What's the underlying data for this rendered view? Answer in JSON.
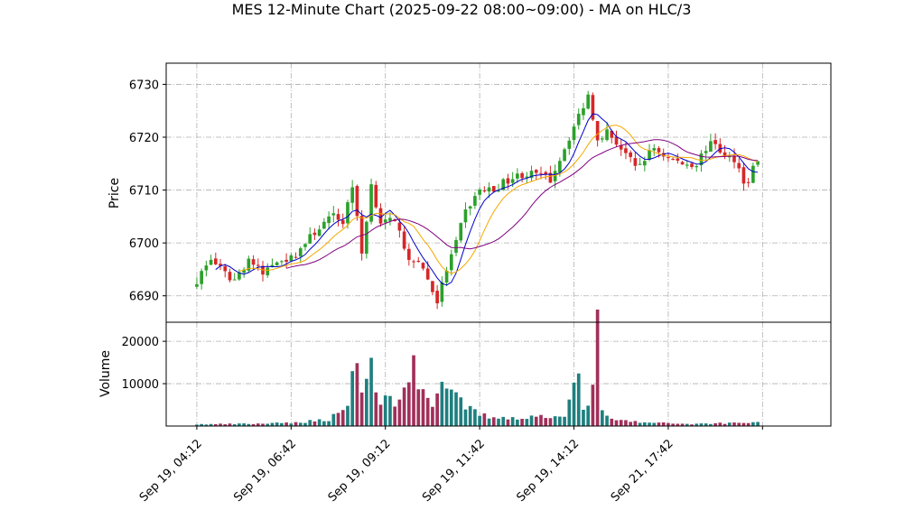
{
  "chart_data": {
    "type": "candlestick",
    "title": "MES 12-Minute Chart (2025-09-22 08:00~09:00) - MA on HLC/3",
    "price_panel": {
      "ylabel": "Price",
      "yticks": [
        6690,
        6700,
        6710,
        6720,
        6730
      ],
      "ylim": [
        6685,
        6734
      ],
      "grid": true
    },
    "volume_panel": {
      "ylabel": "Volume",
      "yticks": [
        10000,
        20000
      ],
      "ylim": [
        0,
        24500
      ],
      "grid": true
    },
    "xlim": [
      -6.5,
      134.5
    ],
    "xticks": [
      {
        "index": 0,
        "label": "Sep 19, 04:12"
      },
      {
        "index": 20,
        "label": "Sep 19, 06:42"
      },
      {
        "index": 40,
        "label": "Sep 19, 09:12"
      },
      {
        "index": 60,
        "label": "Sep 19, 11:42"
      },
      {
        "index": 80,
        "label": "Sep 19, 14:12"
      },
      {
        "index": 100,
        "label": "Sep 21, 17:42"
      },
      {
        "index": 120,
        "label": ""
      }
    ],
    "colors": {
      "up": "#2ca02c",
      "down": "#d62728",
      "vol_up": "#1f7f7f",
      "vol_down": "#a0305a"
    },
    "ma_series": [
      {
        "color": "#0000cc"
      },
      {
        "color": "#f5a800"
      },
      {
        "color": "#800080"
      }
    ],
    "anchors": [
      [
        0,
        6693
      ],
      [
        3,
        6697
      ],
      [
        6,
        6694
      ],
      [
        8,
        6693
      ],
      [
        11,
        6697
      ],
      [
        14,
        6694
      ],
      [
        17,
        6697
      ],
      [
        20,
        6697
      ],
      [
        23,
        6700
      ],
      [
        26,
        6703
      ],
      [
        29,
        6705
      ],
      [
        31,
        6704
      ],
      [
        33,
        6711
      ],
      [
        35,
        6698
      ],
      [
        37,
        6711
      ],
      [
        39,
        6704
      ],
      [
        41,
        6704
      ],
      [
        43,
        6703
      ],
      [
        45,
        6696
      ],
      [
        47,
        6697
      ],
      [
        49,
        6693
      ],
      [
        51,
        6689
      ],
      [
        53,
        6695
      ],
      [
        55,
        6700
      ],
      [
        57,
        6706
      ],
      [
        60,
        6710
      ],
      [
        63,
        6710
      ],
      [
        66,
        6712
      ],
      [
        69,
        6713
      ],
      [
        72,
        6713
      ],
      [
        75,
        6712
      ],
      [
        77,
        6716
      ],
      [
        79,
        6720
      ],
      [
        81,
        6724
      ],
      [
        83,
        6728
      ],
      [
        85,
        6720
      ],
      [
        87,
        6721
      ],
      [
        89,
        6719
      ],
      [
        91,
        6717
      ],
      [
        93,
        6714
      ],
      [
        95,
        6716
      ],
      [
        97,
        6718
      ],
      [
        100,
        6716
      ],
      [
        103,
        6715
      ],
      [
        106,
        6715
      ],
      [
        108,
        6718
      ],
      [
        110,
        6719
      ],
      [
        112,
        6716
      ],
      [
        114,
        6716
      ],
      [
        116,
        6712
      ],
      [
        117,
        6711
      ],
      [
        118,
        6715
      ],
      [
        119,
        6715
      ]
    ],
    "volume_anchors": [
      [
        0,
        400
      ],
      [
        10,
        500
      ],
      [
        20,
        700
      ],
      [
        28,
        1600
      ],
      [
        32,
        5000
      ],
      [
        34,
        19000
      ],
      [
        35,
        8000
      ],
      [
        37,
        14000
      ],
      [
        38,
        7000
      ],
      [
        42,
        6000
      ],
      [
        45,
        11000
      ],
      [
        46,
        13000
      ],
      [
        48,
        8000
      ],
      [
        50,
        6000
      ],
      [
        52,
        10000
      ],
      [
        54,
        7000
      ],
      [
        56,
        5500
      ],
      [
        58,
        4000
      ],
      [
        60,
        2500
      ],
      [
        65,
        2000
      ],
      [
        70,
        2000
      ],
      [
        75,
        2500
      ],
      [
        78,
        3000
      ],
      [
        80,
        8000
      ],
      [
        81,
        10500
      ],
      [
        82,
        4000
      ],
      [
        84,
        9000
      ],
      [
        85,
        22500
      ],
      [
        86,
        3000
      ],
      [
        88,
        1500
      ],
      [
        95,
        800
      ],
      [
        105,
        500
      ],
      [
        112,
        700
      ],
      [
        119,
        900
      ]
    ]
  }
}
